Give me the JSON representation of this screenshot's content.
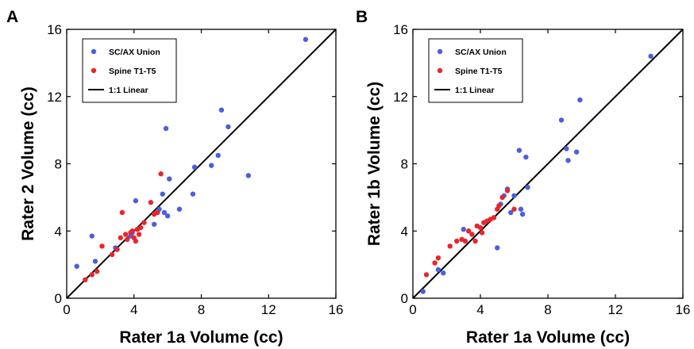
{
  "chart_data": [
    {
      "type": "scatter",
      "panel_label": "A",
      "xlabel": "Rater 1a Volume (cc)",
      "ylabel": "Rater 2 Volume (cc)",
      "xlim": [
        0,
        16
      ],
      "ylim": [
        0,
        16
      ],
      "xticks": [
        "0",
        "4",
        "8",
        "12",
        "16"
      ],
      "yticks": [
        "0",
        "4",
        "8",
        "12",
        "16"
      ],
      "grid": false,
      "legend_position": "top-left",
      "series": [
        {
          "name": "SC/AX Union",
          "kind": "points",
          "color": "#4a5fe0",
          "points": [
            [
              0.6,
              1.9
            ],
            [
              1.5,
              3.7
            ],
            [
              1.7,
              2.2
            ],
            [
              2.9,
              3.0
            ],
            [
              3.8,
              3.7
            ],
            [
              3.9,
              3.9
            ],
            [
              4.1,
              5.8
            ],
            [
              5.2,
              4.4
            ],
            [
              5.5,
              5.3
            ],
            [
              5.7,
              6.2
            ],
            [
              5.8,
              5.1
            ],
            [
              5.9,
              10.1
            ],
            [
              6.0,
              4.9
            ],
            [
              6.1,
              7.1
            ],
            [
              6.7,
              5.3
            ],
            [
              7.5,
              6.2
            ],
            [
              7.6,
              7.8
            ],
            [
              8.6,
              7.9
            ],
            [
              9.0,
              8.5
            ],
            [
              9.2,
              11.2
            ],
            [
              9.6,
              10.2
            ],
            [
              10.8,
              7.3
            ],
            [
              14.2,
              15.4
            ]
          ]
        },
        {
          "name": "Spine T1-T5",
          "kind": "points",
          "color": "#e8262c",
          "points": [
            [
              1.1,
              1.1
            ],
            [
              1.5,
              1.4
            ],
            [
              1.8,
              1.6
            ],
            [
              2.1,
              3.1
            ],
            [
              2.7,
              2.6
            ],
            [
              3.0,
              2.9
            ],
            [
              3.2,
              3.6
            ],
            [
              3.3,
              5.1
            ],
            [
              3.5,
              3.8
            ],
            [
              3.6,
              3.5
            ],
            [
              3.8,
              3.9
            ],
            [
              3.9,
              4.0
            ],
            [
              4.0,
              3.6
            ],
            [
              4.1,
              3.4
            ],
            [
              4.2,
              4.1
            ],
            [
              4.3,
              3.8
            ],
            [
              4.4,
              4.2
            ],
            [
              4.6,
              4.5
            ],
            [
              5.0,
              5.7
            ],
            [
              5.2,
              5.0
            ],
            [
              5.4,
              5.1
            ],
            [
              5.6,
              7.4
            ]
          ]
        },
        {
          "name": "1:1 Linear",
          "kind": "line",
          "color": "#000000",
          "points": [
            [
              0,
              0
            ],
            [
              16,
              16
            ]
          ]
        }
      ]
    },
    {
      "type": "scatter",
      "panel_label": "B",
      "xlabel": "Rater 1a Volume (cc)",
      "ylabel": "Rater 1b Volume (cc)",
      "xlim": [
        0,
        16
      ],
      "ylim": [
        0,
        16
      ],
      "xticks": [
        "0",
        "4",
        "8",
        "12",
        "16"
      ],
      "yticks": [
        "0",
        "4",
        "8",
        "12",
        "16"
      ],
      "grid": false,
      "legend_position": "top-left",
      "series": [
        {
          "name": "SC/AX Union",
          "kind": "points",
          "color": "#4a5fe0",
          "points": [
            [
              0.6,
              0.4
            ],
            [
              1.5,
              1.7
            ],
            [
              1.8,
              1.5
            ],
            [
              3.0,
              4.1
            ],
            [
              5.0,
              3.0
            ],
            [
              5.2,
              5.6
            ],
            [
              5.4,
              6.1
            ],
            [
              5.6,
              6.5
            ],
            [
              5.8,
              5.1
            ],
            [
              6.0,
              6.1
            ],
            [
              6.3,
              8.8
            ],
            [
              6.4,
              5.3
            ],
            [
              6.5,
              5.0
            ],
            [
              6.7,
              8.4
            ],
            [
              6.8,
              6.6
            ],
            [
              8.8,
              10.6
            ],
            [
              9.1,
              8.9
            ],
            [
              9.2,
              8.2
            ],
            [
              9.7,
              8.7
            ],
            [
              9.9,
              11.8
            ],
            [
              14.1,
              14.4
            ]
          ]
        },
        {
          "name": "Spine T1-T5",
          "kind": "points",
          "color": "#e8262c",
          "points": [
            [
              0.8,
              1.4
            ],
            [
              1.3,
              2.1
            ],
            [
              1.5,
              2.4
            ],
            [
              2.2,
              3.1
            ],
            [
              2.6,
              3.4
            ],
            [
              2.9,
              3.5
            ],
            [
              3.1,
              3.4
            ],
            [
              3.3,
              4.0
            ],
            [
              3.5,
              3.8
            ],
            [
              3.7,
              3.4
            ],
            [
              3.8,
              4.3
            ],
            [
              4.0,
              4.2
            ],
            [
              4.1,
              3.9
            ],
            [
              4.2,
              4.5
            ],
            [
              4.4,
              4.6
            ],
            [
              4.6,
              4.7
            ],
            [
              4.8,
              4.8
            ],
            [
              5.0,
              5.3
            ],
            [
              5.1,
              5.5
            ],
            [
              5.3,
              6.0
            ],
            [
              5.6,
              6.4
            ],
            [
              6.0,
              5.3
            ]
          ]
        },
        {
          "name": "1:1 Linear",
          "kind": "line",
          "color": "#000000",
          "points": [
            [
              0,
              0
            ],
            [
              16,
              16
            ]
          ]
        }
      ]
    }
  ]
}
